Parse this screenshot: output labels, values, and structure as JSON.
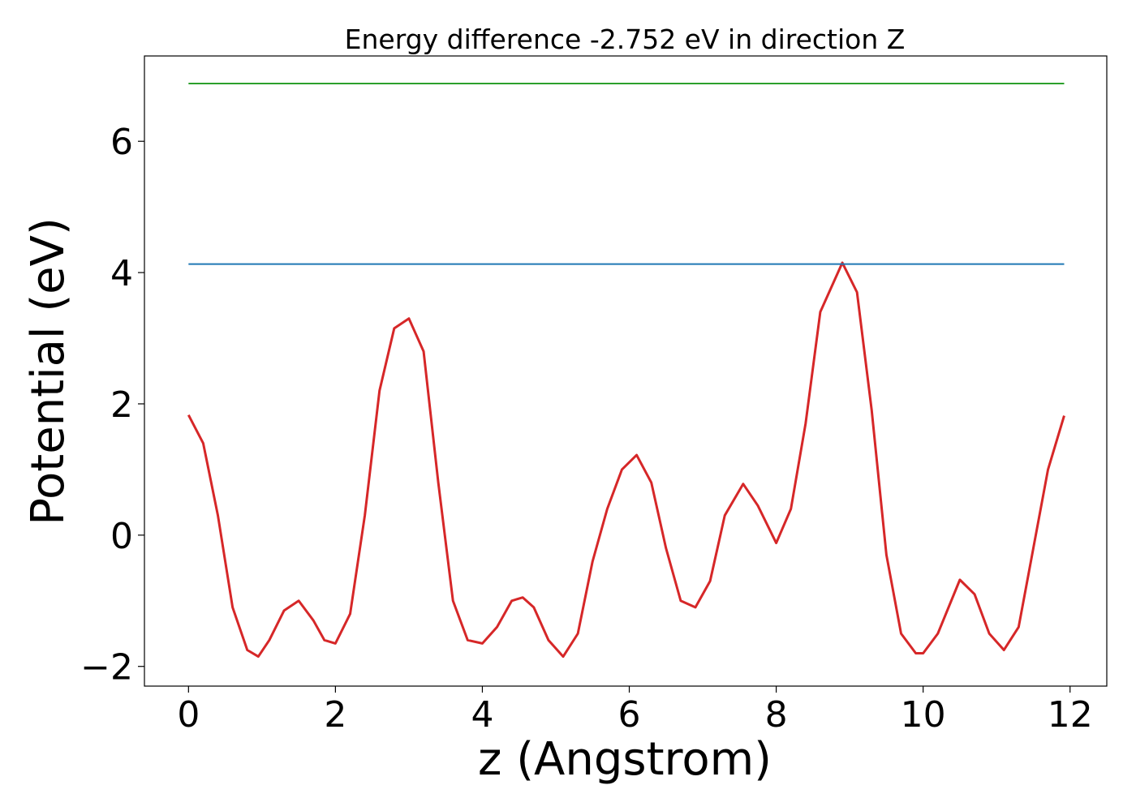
{
  "chart_data": {
    "type": "line",
    "title": "Energy difference -2.752 eV in direction Z",
    "xlabel": "z (Angstrom)",
    "ylabel": "Potential (eV)",
    "xlim": [
      -0.6,
      12.5
    ],
    "ylim": [
      -2.3,
      7.3
    ],
    "xticks": [
      0,
      2,
      4,
      6,
      8,
      10,
      12
    ],
    "xtick_labels": [
      "0",
      "2",
      "4",
      "6",
      "8",
      "10",
      "12"
    ],
    "yticks": [
      -2,
      0,
      2,
      4,
      6
    ],
    "ytick_labels": [
      "−2",
      "0",
      "2",
      "4",
      "6"
    ],
    "grid": false,
    "series": [
      {
        "color": "#d62728",
        "x": [
          0.0,
          0.2,
          0.4,
          0.6,
          0.8,
          0.95,
          1.1,
          1.3,
          1.5,
          1.7,
          1.85,
          2.0,
          2.2,
          2.4,
          2.6,
          2.8,
          3.0,
          3.2,
          3.4,
          3.6,
          3.8,
          4.0,
          4.2,
          4.4,
          4.55,
          4.7,
          4.9,
          5.1,
          5.3,
          5.5,
          5.7,
          5.9,
          6.1,
          6.3,
          6.5,
          6.7,
          6.9,
          7.1,
          7.3,
          7.55,
          7.75,
          8.0,
          8.2,
          8.4,
          8.6,
          8.9,
          9.1,
          9.3,
          9.5,
          9.7,
          9.9,
          10.0,
          10.2,
          10.5,
          10.7,
          10.9,
          11.1,
          11.3,
          11.5,
          11.7,
          11.92
        ],
        "values": [
          1.83,
          1.4,
          0.3,
          -1.1,
          -1.75,
          -1.85,
          -1.6,
          -1.15,
          -1.0,
          -1.3,
          -1.6,
          -1.65,
          -1.2,
          0.3,
          2.2,
          3.15,
          3.3,
          2.8,
          0.8,
          -1.0,
          -1.6,
          -1.65,
          -1.4,
          -1.0,
          -0.95,
          -1.1,
          -1.6,
          -1.85,
          -1.5,
          -0.4,
          0.4,
          1.0,
          1.22,
          0.8,
          -0.2,
          -1.0,
          -1.1,
          -0.7,
          0.3,
          0.78,
          0.45,
          -0.12,
          0.4,
          1.7,
          3.4,
          4.15,
          3.7,
          1.9,
          -0.3,
          -1.5,
          -1.8,
          -1.8,
          -1.5,
          -0.68,
          -0.9,
          -1.5,
          -1.75,
          -1.4,
          -0.2,
          1.0,
          1.82
        ]
      },
      {
        "color": "#1f77b4",
        "x": [
          0.0,
          11.92
        ],
        "values": [
          4.13,
          4.13
        ]
      },
      {
        "color": "#2ca02c",
        "x": [
          0.0,
          11.92
        ],
        "values": [
          6.88,
          6.88
        ]
      }
    ]
  }
}
